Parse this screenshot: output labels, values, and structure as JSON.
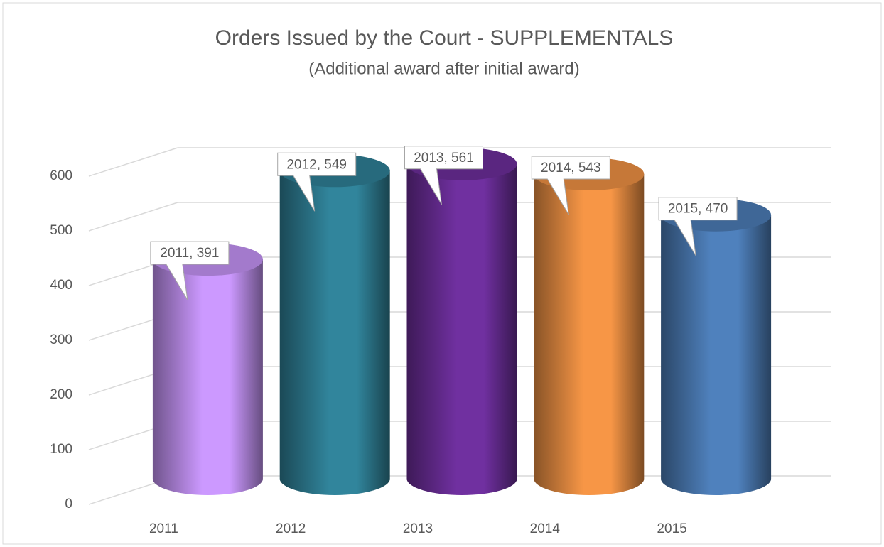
{
  "chart_data": {
    "type": "cylinder",
    "title": "Orders Issued by the Court - SUPPLEMENTALS",
    "subtitle": "(Additional award after initial award)",
    "categories": [
      "2011",
      "2012",
      "2013",
      "2014",
      "2015"
    ],
    "values": [
      391,
      549,
      561,
      543,
      470
    ],
    "value_labels": [
      "2011, 391",
      "2012, 549",
      "2013, 561",
      "2014, 543",
      "2015, 470"
    ],
    "colors": [
      "#cc99ff",
      "#31859c",
      "#7030a0",
      "#f79646",
      "#4f81bd"
    ],
    "ylim": [
      0,
      700
    ],
    "yticks": [
      0,
      100,
      200,
      300,
      400,
      500,
      600
    ],
    "grid": true
  }
}
